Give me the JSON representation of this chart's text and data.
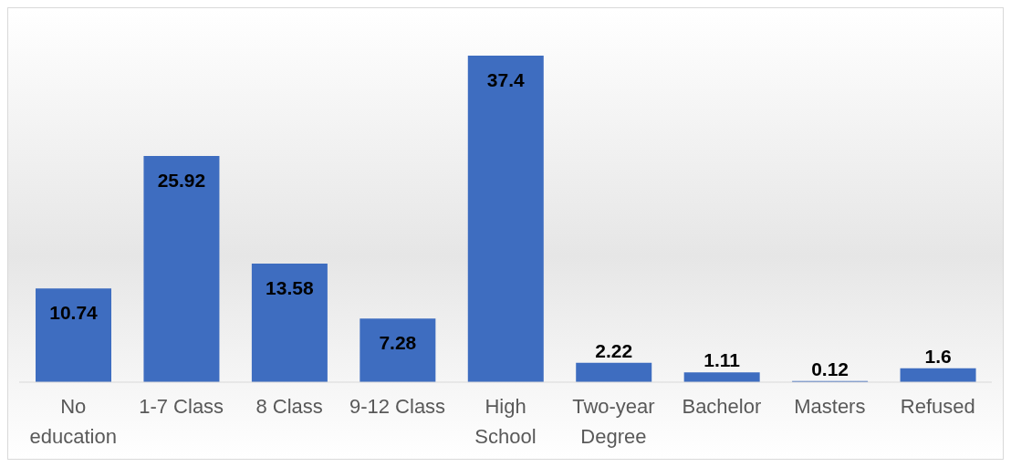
{
  "chart_data": {
    "type": "bar",
    "categories": [
      "No education",
      "1-7 Class",
      "8 Class",
      "9-12 Class",
      "High School",
      "Two-year Degree",
      "Bachelor",
      "Masters",
      "Refused"
    ],
    "values": [
      10.74,
      25.92,
      13.58,
      7.28,
      37.4,
      2.22,
      1.11,
      0.12,
      1.6
    ],
    "color": "#3e6dc0",
    "data_labels": true
  }
}
